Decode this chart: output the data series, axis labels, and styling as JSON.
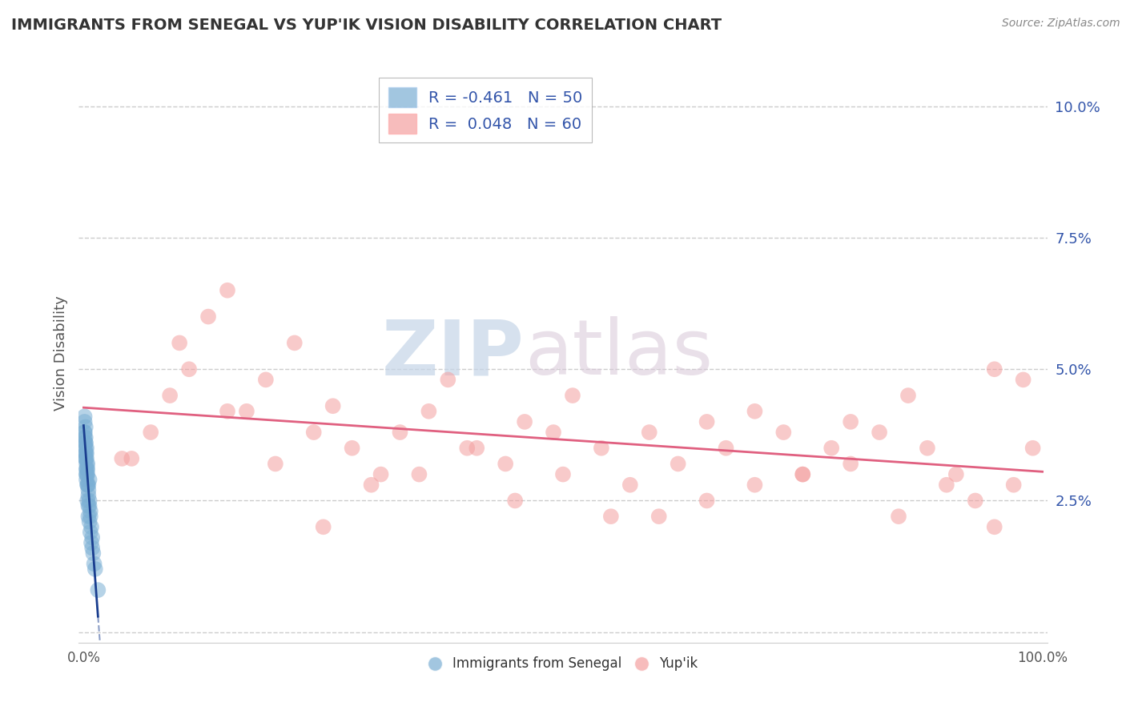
{
  "title": "IMMIGRANTS FROM SENEGAL VS YUP'IK VISION DISABILITY CORRELATION CHART",
  "source_text": "Source: ZipAtlas.com",
  "ylabel": "Vision Disability",
  "xlim": [
    -0.005,
    1.005
  ],
  "ylim": [
    -0.002,
    0.108
  ],
  "yticks": [
    0.0,
    0.025,
    0.05,
    0.075,
    0.1
  ],
  "ytick_labels": [
    "",
    "2.5%",
    "5.0%",
    "7.5%",
    "10.0%"
  ],
  "xtick_positions": [
    0.0,
    0.1,
    0.2,
    0.3,
    0.4,
    0.5,
    0.6,
    0.7,
    0.8,
    0.9,
    1.0
  ],
  "xtick_labels": [
    "0.0%",
    "",
    "",
    "",
    "",
    "",
    "",
    "",
    "",
    "",
    "100.0%"
  ],
  "legend_r1": "R = -0.461",
  "legend_n1": "N = 50",
  "legend_r2": "R =  0.048",
  "legend_n2": "N = 60",
  "blue_color": "#7BAFD4",
  "pink_color": "#F4A0A0",
  "blue_line_color": "#1A3E8F",
  "pink_line_color": "#E06080",
  "watermark_zip": "ZIP",
  "watermark_atlas": "atlas",
  "background_color": "#FFFFFF",
  "grid_color": "#CCCCCC",
  "blue_scatter_x": [
    0.001,
    0.001,
    0.001,
    0.001,
    0.002,
    0.002,
    0.002,
    0.002,
    0.002,
    0.002,
    0.003,
    0.003,
    0.003,
    0.003,
    0.003,
    0.003,
    0.004,
    0.004,
    0.004,
    0.004,
    0.005,
    0.005,
    0.005,
    0.006,
    0.006,
    0.006,
    0.007,
    0.007,
    0.008,
    0.009,
    0.001,
    0.001,
    0.002,
    0.002,
    0.002,
    0.003,
    0.003,
    0.003,
    0.004,
    0.004,
    0.005,
    0.005,
    0.006,
    0.007,
    0.008,
    0.009,
    0.01,
    0.011,
    0.012,
    0.015
  ],
  "blue_scatter_y": [
    0.038,
    0.04,
    0.036,
    0.041,
    0.035,
    0.033,
    0.037,
    0.036,
    0.034,
    0.039,
    0.032,
    0.034,
    0.033,
    0.03,
    0.031,
    0.035,
    0.028,
    0.03,
    0.031,
    0.032,
    0.027,
    0.028,
    0.026,
    0.025,
    0.024,
    0.029,
    0.023,
    0.022,
    0.02,
    0.018,
    0.038,
    0.037,
    0.036,
    0.034,
    0.033,
    0.031,
    0.03,
    0.029,
    0.028,
    0.025,
    0.024,
    0.022,
    0.021,
    0.019,
    0.017,
    0.016,
    0.015,
    0.013,
    0.012,
    0.008
  ],
  "pink_scatter_x": [
    0.04,
    0.07,
    0.09,
    0.11,
    0.13,
    0.15,
    0.17,
    0.19,
    0.22,
    0.24,
    0.26,
    0.28,
    0.31,
    0.33,
    0.36,
    0.38,
    0.41,
    0.44,
    0.46,
    0.49,
    0.51,
    0.54,
    0.57,
    0.59,
    0.62,
    0.65,
    0.67,
    0.7,
    0.73,
    0.75,
    0.78,
    0.8,
    0.83,
    0.86,
    0.88,
    0.91,
    0.93,
    0.95,
    0.97,
    0.99,
    0.1,
    0.2,
    0.3,
    0.4,
    0.5,
    0.6,
    0.7,
    0.8,
    0.9,
    0.98,
    0.05,
    0.15,
    0.25,
    0.35,
    0.45,
    0.55,
    0.65,
    0.75,
    0.85,
    0.95
  ],
  "pink_scatter_y": [
    0.033,
    0.038,
    0.045,
    0.05,
    0.06,
    0.065,
    0.042,
    0.048,
    0.055,
    0.038,
    0.043,
    0.035,
    0.03,
    0.038,
    0.042,
    0.048,
    0.035,
    0.032,
    0.04,
    0.038,
    0.045,
    0.035,
    0.028,
    0.038,
    0.032,
    0.04,
    0.035,
    0.042,
    0.038,
    0.03,
    0.035,
    0.04,
    0.038,
    0.045,
    0.035,
    0.03,
    0.025,
    0.02,
    0.028,
    0.035,
    0.055,
    0.032,
    0.028,
    0.035,
    0.03,
    0.022,
    0.028,
    0.032,
    0.028,
    0.048,
    0.033,
    0.042,
    0.02,
    0.03,
    0.025,
    0.022,
    0.025,
    0.03,
    0.022,
    0.05
  ]
}
